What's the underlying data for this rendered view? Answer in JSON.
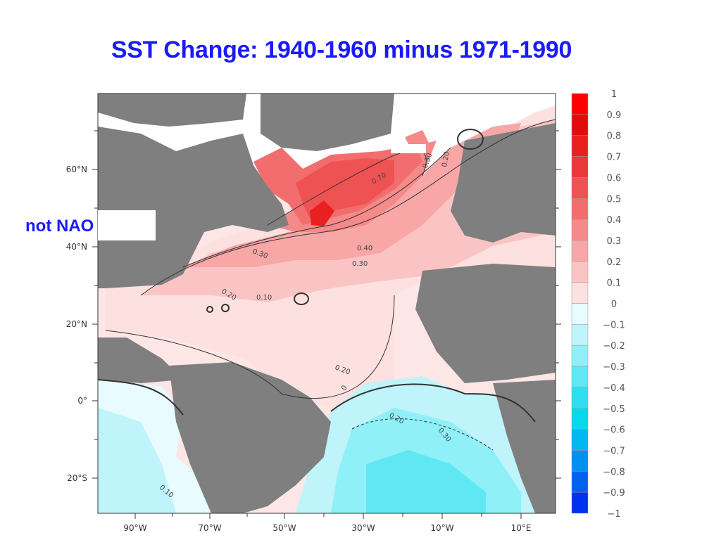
{
  "title": "SST Change: 1940-1960 minus 1971-1990",
  "annotation": "not NAO",
  "colors": {
    "land": "#7f7f7f",
    "missing": "#ffffff",
    "positive": [
      "#ffffff",
      "#fde0e0",
      "#fbc4c4",
      "#f8a6a6",
      "#f58a8a",
      "#f26e6e",
      "#ef5252",
      "#eb3838",
      "#e82020",
      "#e30b0b",
      "#ff0000"
    ],
    "negative": [
      "#e8fbff",
      "#c0f4fb",
      "#8ff0f8",
      "#5fe8f4",
      "#2ee0ef",
      "#08d8ee",
      "#00b8f0",
      "#0090f0",
      "#0060f0",
      "#0030f0",
      "#0000ff"
    ],
    "title": "#1a1aff"
  },
  "axes": {
    "lon_ticks": [
      "90°W",
      "70°W",
      "50°W",
      "30°W",
      "10°W",
      "10°E"
    ],
    "lat_ticks": [
      "60°N",
      "40°N",
      "20°N",
      "0°",
      "20°S"
    ]
  },
  "colorbar": {
    "labels": [
      "1",
      "0.9",
      "0.8",
      "0.7",
      "0.6",
      "0.5",
      "0.4",
      "0.3",
      "0.2",
      "0.1",
      "0",
      "−0.1",
      "−0.2",
      "−0.3",
      "−0.4",
      "−0.5",
      "−0.6",
      "−0.7",
      "−0.8",
      "−0.9",
      "−1"
    ]
  },
  "contour_labels": [
    "0.70",
    "0.30",
    "0.20",
    "0.40",
    "0.30",
    "0.30",
    "0.20",
    "0.10",
    "0.20",
    "0",
    "0.20",
    "0.30",
    "0.10"
  ]
}
